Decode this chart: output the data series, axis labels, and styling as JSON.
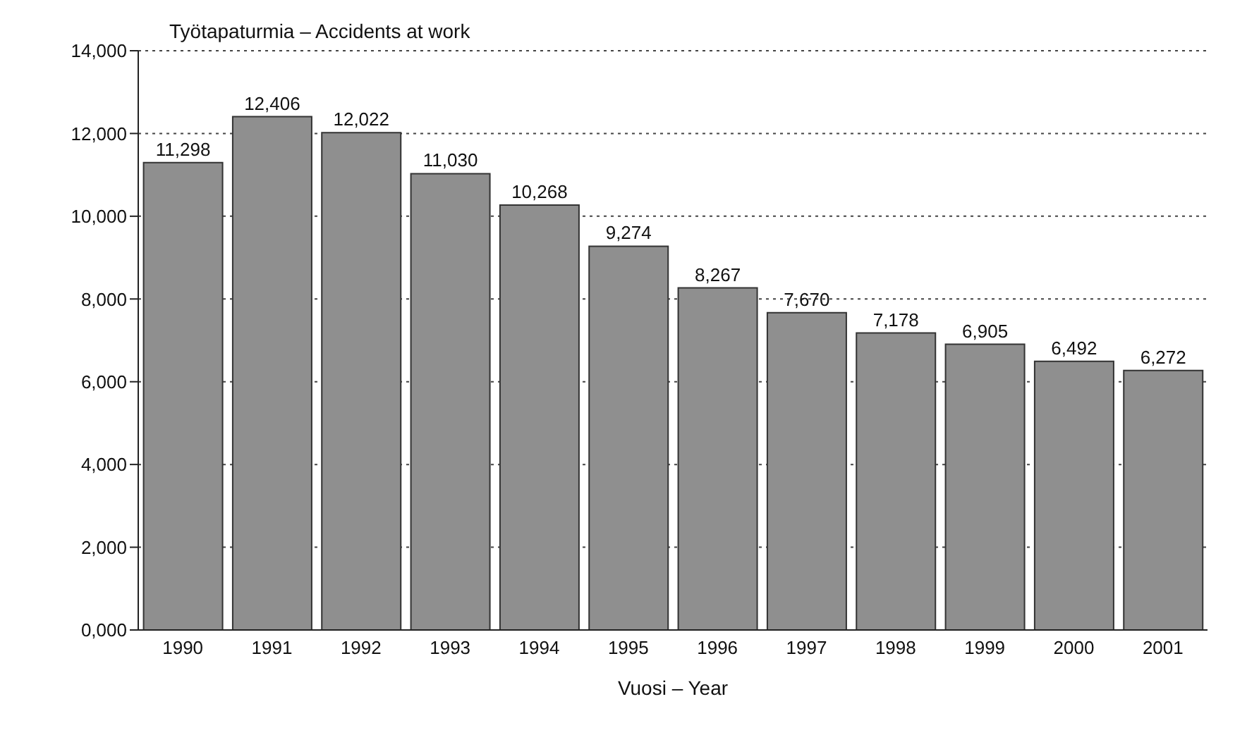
{
  "chart_data": {
    "type": "bar",
    "title": "Työtapaturmia – Accidents at work",
    "xlabel": "Vuosi – Year",
    "categories": [
      "1990",
      "1991",
      "1992",
      "1993",
      "1994",
      "1995",
      "1996",
      "1997",
      "1998",
      "1999",
      "2000",
      "2001"
    ],
    "values": [
      11298,
      12406,
      12022,
      11030,
      10268,
      9274,
      8267,
      7670,
      7178,
      6905,
      6492,
      6272
    ],
    "value_labels": [
      "11,298",
      "12,406",
      "12,022",
      "11,030",
      "10,268",
      "9,274",
      "8,267",
      "7,670",
      "7,178",
      "6,905",
      "6,492",
      "6,272"
    ],
    "color": "#8f8f8f",
    "ylim": [
      0,
      14000
    ],
    "yticks": [
      {
        "value": 0,
        "label": "0,000"
      },
      {
        "value": 2000,
        "label": "2,000"
      },
      {
        "value": 4000,
        "label": "4,000"
      },
      {
        "value": 6000,
        "label": "6,000"
      },
      {
        "value": 8000,
        "label": "8,000"
      },
      {
        "value": 10000,
        "label": "10,000"
      },
      {
        "value": 12000,
        "label": "12,000"
      },
      {
        "value": 14000,
        "label": "14,000"
      }
    ],
    "grid": "y"
  }
}
